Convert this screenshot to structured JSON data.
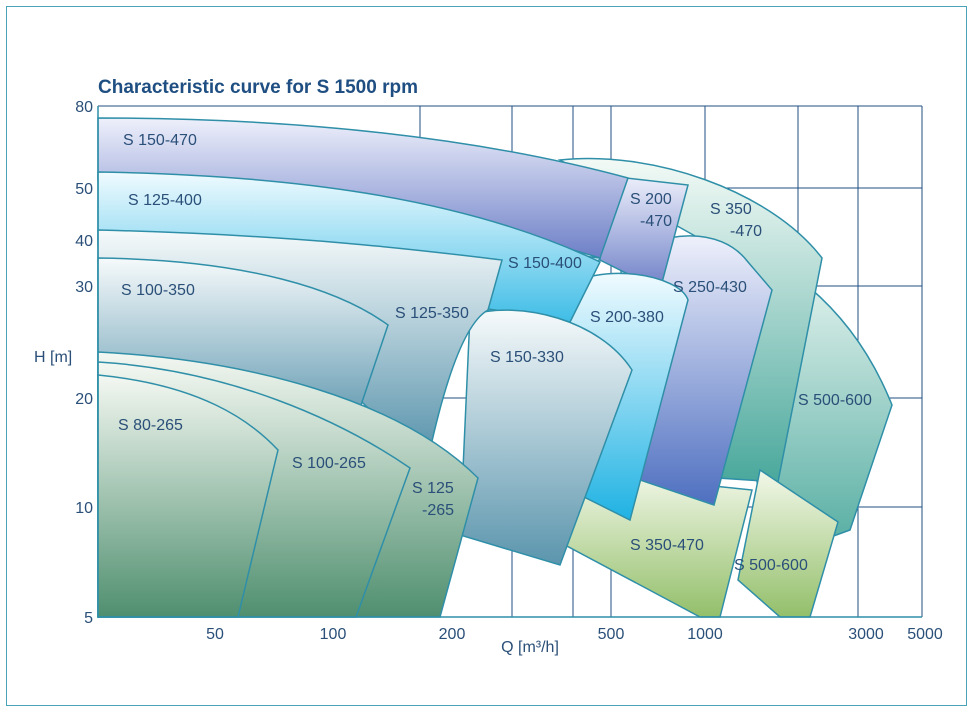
{
  "chart_data": {
    "type": "area",
    "title": "Characteristic curve for S 1500 rpm",
    "xlabel": "Q [m³/h]",
    "ylabel": "H [m]",
    "x_scale": "log",
    "y_scale": "log",
    "x_tick_labels": [
      "50",
      "100",
      "200",
      "500",
      "1000",
      "3000",
      "5000"
    ],
    "y_tick_labels": [
      "80",
      "50",
      "40",
      "30",
      "20",
      "10",
      "5"
    ],
    "grid": true,
    "regions": [
      {
        "name": "S 150-470",
        "color_top": "#eef0fb",
        "color_bottom": "#6d7fc7"
      },
      {
        "name": "S 125-400",
        "color_top": "#f0fbff",
        "color_bottom": "#3fbde6"
      },
      {
        "name": "S 100-350",
        "color_top": "#f6fafb",
        "color_bottom": "#5b95ad"
      },
      {
        "name": "S 80-265",
        "color_top": "#f4f8f2",
        "color_bottom": "#4f8f6f"
      },
      {
        "name": "S 100-265",
        "color_top": "#f4f8f2",
        "color_bottom": "#4f8f6f"
      },
      {
        "name": "S 125\n-265",
        "color_top": "#f4f8f2",
        "color_bottom": "#4f8f6f"
      },
      {
        "name": "S 125-350",
        "color_top": "#f6fafb",
        "color_bottom": "#5b95ad"
      },
      {
        "name": "S 150-330",
        "color_top": "#f6fafb",
        "color_bottom": "#5b95ad"
      },
      {
        "name": "S 150-400",
        "color_top": "#f0fbff",
        "color_bottom": "#3fbde6"
      },
      {
        "name": "S 200-380",
        "color_top": "#f0fbff",
        "color_bottom": "#1fb2e3"
      },
      {
        "name": "S 200\n-470",
        "color_top": "#eef0fb",
        "color_bottom": "#6d7fc7"
      },
      {
        "name": "S 250-430",
        "color_top": "#eef0fb",
        "color_bottom": "#4e6fc0"
      },
      {
        "name": "S 350\n-470",
        "color_top": "#f3faf6",
        "color_bottom": "#4aa89c"
      },
      {
        "name": "S 500-600",
        "color_top": "#f3faf6",
        "color_bottom": "#4aa89c"
      },
      {
        "name": "S 350-470",
        "color_top": "#f3f8ea",
        "color_bottom": "#93bf6a"
      },
      {
        "name": "S 500-600",
        "color_top": "#f3f8ea",
        "color_bottom": "#93bf6a"
      }
    ],
    "colors": {
      "axis": "#2f8fa8",
      "grid": "#1f4f82",
      "text": "#2a4f78"
    }
  }
}
